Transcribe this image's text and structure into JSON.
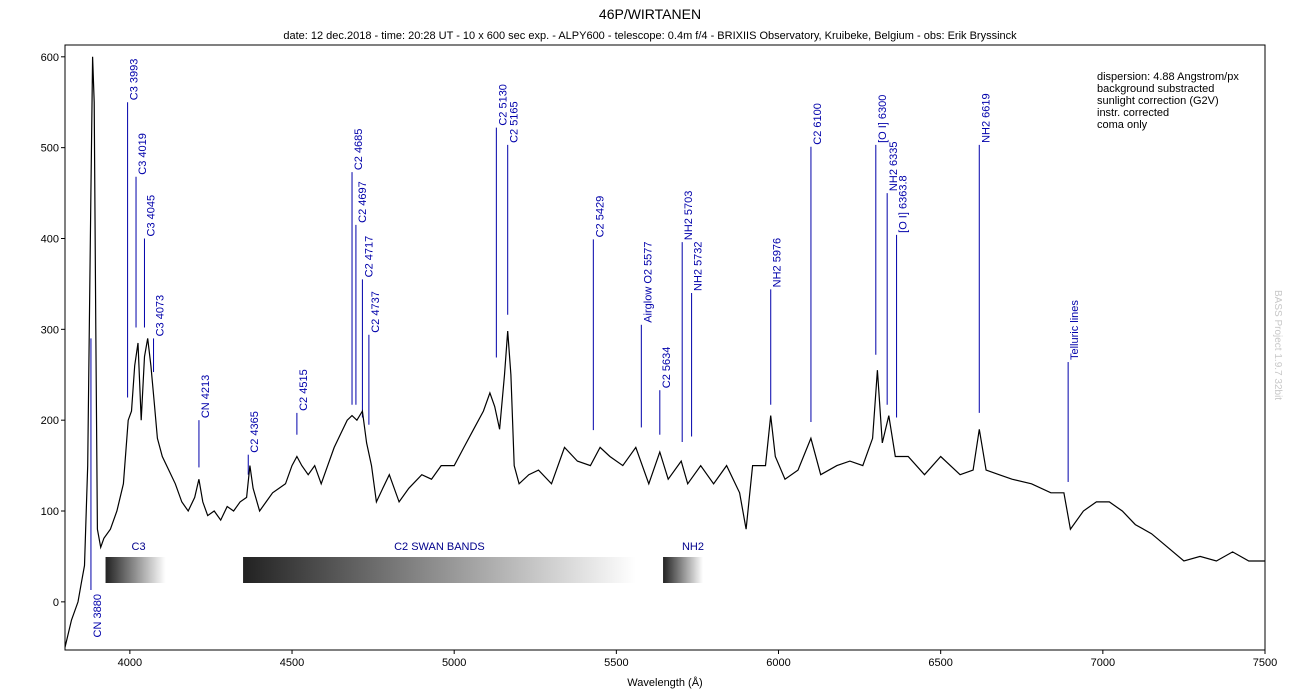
{
  "chart_data": {
    "type": "line",
    "title": "46P/WIRTANEN",
    "subtitle": "date: 12 dec.2018 - time: 20:28 UT - 10 x 600 sec exp. - ALPY600 - telescope: 0.4m f/4 - BRIXIIS Observatory, Kruibeke, Belgium - obs: Erik Bryssinck",
    "x_label": "Wavelength (Å)",
    "xlim": [
      3800,
      7500
    ],
    "ylim": [
      -53,
      613
    ],
    "xticks": [
      4000,
      4500,
      5000,
      5500,
      6000,
      6500,
      7000,
      7500
    ],
    "yticks": [
      0,
      100,
      200,
      300,
      400,
      500,
      600
    ],
    "color": "#000000",
    "annotation_color": "#0000aa",
    "x": [
      3800,
      3820,
      3840,
      3850,
      3860,
      3870,
      3880,
      3885,
      3890,
      3895,
      3900,
      3910,
      3920,
      3940,
      3960,
      3980,
      3995,
      4005,
      4015,
      4025,
      4035,
      4045,
      4055,
      4065,
      4075,
      4085,
      4100,
      4120,
      4140,
      4160,
      4180,
      4200,
      4213,
      4225,
      4240,
      4260,
      4280,
      4300,
      4320,
      4340,
      4360,
      4370,
      4380,
      4400,
      4420,
      4440,
      4460,
      4480,
      4500,
      4515,
      4530,
      4550,
      4570,
      4590,
      4610,
      4630,
      4650,
      4670,
      4685,
      4700,
      4717,
      4730,
      4745,
      4760,
      4780,
      4800,
      4830,
      4860,
      4900,
      4930,
      4960,
      5000,
      5030,
      5060,
      5090,
      5110,
      5125,
      5140,
      5155,
      5165,
      5175,
      5185,
      5200,
      5230,
      5260,
      5300,
      5340,
      5380,
      5420,
      5450,
      5480,
      5520,
      5560,
      5600,
      5634,
      5660,
      5700,
      5720,
      5760,
      5800,
      5840,
      5880,
      5900,
      5920,
      5960,
      5976,
      5990,
      6020,
      6060,
      6100,
      6130,
      6180,
      6220,
      6260,
      6290,
      6305,
      6320,
      6340,
      6360,
      6400,
      6450,
      6500,
      6560,
      6600,
      6619,
      6640,
      6680,
      6720,
      6780,
      6840,
      6880,
      6900,
      6940,
      6980,
      7020,
      7060,
      7100,
      7150,
      7200,
      7250,
      7300,
      7350,
      7400,
      7450,
      7500
    ],
    "values": [
      -50,
      -20,
      0,
      20,
      40,
      150,
      450,
      600,
      550,
      300,
      80,
      60,
      70,
      80,
      100,
      130,
      200,
      210,
      260,
      285,
      200,
      270,
      290,
      260,
      220,
      180,
      160,
      145,
      130,
      110,
      100,
      115,
      135,
      110,
      95,
      100,
      90,
      105,
      100,
      110,
      115,
      150,
      125,
      100,
      110,
      120,
      125,
      130,
      150,
      160,
      150,
      140,
      150,
      130,
      150,
      170,
      185,
      200,
      205,
      200,
      210,
      175,
      150,
      110,
      125,
      140,
      110,
      125,
      140,
      135,
      150,
      150,
      170,
      190,
      210,
      230,
      215,
      190,
      250,
      298,
      250,
      150,
      130,
      140,
      145,
      130,
      170,
      155,
      150,
      170,
      160,
      150,
      170,
      130,
      165,
      135,
      155,
      130,
      150,
      130,
      150,
      120,
      80,
      150,
      150,
      205,
      160,
      135,
      145,
      180,
      140,
      150,
      155,
      150,
      180,
      255,
      175,
      205,
      160,
      160,
      140,
      160,
      140,
      145,
      190,
      145,
      140,
      135,
      130,
      120,
      120,
      80,
      100,
      110,
      110,
      100,
      85,
      75,
      60,
      45,
      50,
      45,
      55,
      45,
      45
    ],
    "annotations": [
      {
        "text": "CN 3880",
        "x": 3880,
        "top": 290,
        "bottom": 13,
        "label_below": true
      },
      {
        "text": "C3 3993",
        "x": 3993,
        "top": 550,
        "bottom": 225
      },
      {
        "text": "C3 4019",
        "x": 4019,
        "top": 468,
        "bottom": 302
      },
      {
        "text": "C3 4045",
        "x": 4045,
        "top": 400,
        "bottom": 302
      },
      {
        "text": "C3 4073",
        "x": 4073,
        "top": 290,
        "bottom": 253
      },
      {
        "text": "CN 4213",
        "x": 4213,
        "top": 200,
        "bottom": 148
      },
      {
        "text": "C2 4365",
        "x": 4365,
        "top": 162,
        "bottom": 140
      },
      {
        "text": "C2 4515",
        "x": 4515,
        "top": 208,
        "bottom": 184
      },
      {
        "text": "C2 4685",
        "x": 4685,
        "top": 473,
        "bottom": 217
      },
      {
        "text": "C2 4697",
        "x": 4697,
        "top": 415,
        "bottom": 217
      },
      {
        "text": "C2 4717",
        "x": 4717,
        "top": 355,
        "bottom": 203
      },
      {
        "text": "C2 4737",
        "x": 4737,
        "top": 294,
        "bottom": 195
      },
      {
        "text": "C2 5130",
        "x": 5130,
        "top": 522,
        "bottom": 269
      },
      {
        "text": "C2 5165",
        "x": 5165,
        "top": 503,
        "bottom": 316
      },
      {
        "text": "C2 5429",
        "x": 5429,
        "top": 399,
        "bottom": 189
      },
      {
        "text": "Airglow O2 5577",
        "x": 5577,
        "top": 305,
        "bottom": 192
      },
      {
        "text": "C2 5634",
        "x": 5634,
        "top": 233,
        "bottom": 184
      },
      {
        "text": "NH2 5703",
        "x": 5703,
        "top": 396,
        "bottom": 176
      },
      {
        "text": "NH2 5732",
        "x": 5732,
        "top": 340,
        "bottom": 182
      },
      {
        "text": "NH2 5976",
        "x": 5976,
        "top": 344,
        "bottom": 217
      },
      {
        "text": "C2 6100",
        "x": 6100,
        "top": 501,
        "bottom": 198
      },
      {
        "text": "[O I] 6300",
        "x": 6300,
        "top": 503,
        "bottom": 272
      },
      {
        "text": "NH2 6335",
        "x": 6335,
        "top": 450,
        "bottom": 217
      },
      {
        "text": "[O I] 6363.8",
        "x": 6364,
        "top": 404,
        "bottom": 203
      },
      {
        "text": "NH2 6619",
        "x": 6619,
        "top": 503,
        "bottom": 208
      },
      {
        "text": "Telluric lines",
        "x": 6893,
        "top": 264,
        "bottom": 132
      }
    ],
    "bands": [
      {
        "name": "C3",
        "start": 3925,
        "end": 4110
      },
      {
        "name": "C2 SWAN BANDS",
        "start": 4349,
        "end": 5560
      },
      {
        "name": "NH2",
        "start": 5644,
        "end": 5767
      }
    ],
    "notes": [
      "dispersion: 4.88 Angstrom/px",
      "background substracted",
      "sunlight correction (G2V)",
      "instr. corrected",
      "coma only"
    ],
    "watermark": "BASS Project 1.9.7 32bit"
  }
}
